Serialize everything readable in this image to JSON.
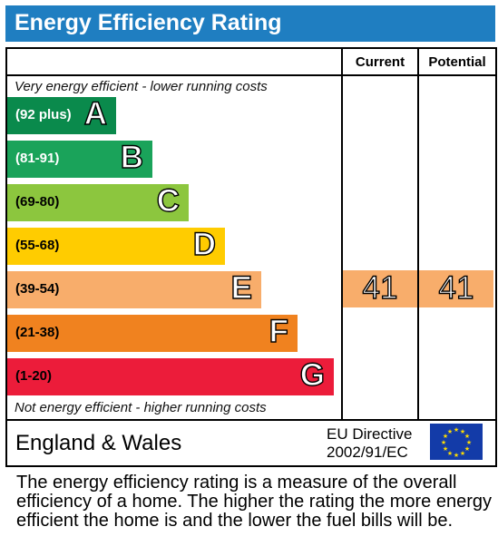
{
  "header": {
    "title": "Energy Efficiency Rating",
    "color": "#1f7ec1"
  },
  "columns": {
    "current": "Current",
    "potential": "Potential"
  },
  "notes": {
    "top": "Very energy efficient - lower running costs",
    "bottom": "Not energy efficient - higher running costs"
  },
  "bands": [
    {
      "range": "(92 plus)",
      "letter": "A",
      "color": "#0a8a4c",
      "text_color": "#ffffff"
    },
    {
      "range": "(81-91)",
      "letter": "B",
      "color": "#1aa35a",
      "text_color": "#ffffff"
    },
    {
      "range": "(69-80)",
      "letter": "C",
      "color": "#8cc63e",
      "text_color": "#000000"
    },
    {
      "range": "(55-68)",
      "letter": "D",
      "color": "#ffcc00",
      "text_color": "#000000"
    },
    {
      "range": "(39-54)",
      "letter": "E",
      "color": "#f8ad6b",
      "text_color": "#000000"
    },
    {
      "range": "(21-38)",
      "letter": "F",
      "color": "#f0821f",
      "text_color": "#000000"
    },
    {
      "range": "(1-20)",
      "letter": "G",
      "color": "#ec1c3a",
      "text_color": "#000000"
    }
  ],
  "ratings": {
    "current": "41",
    "potential": "41",
    "band": "E"
  },
  "footer": {
    "region": "England & Wales",
    "directive_line1": "EU Directive",
    "directive_line2": "2002/91/EC",
    "flag_icon": "eu-flag-icon"
  },
  "description": "The energy efficiency rating is a measure of the overall efficiency of a home. The higher the rating the more energy efficient the home is and the lower the fuel bills will be."
}
